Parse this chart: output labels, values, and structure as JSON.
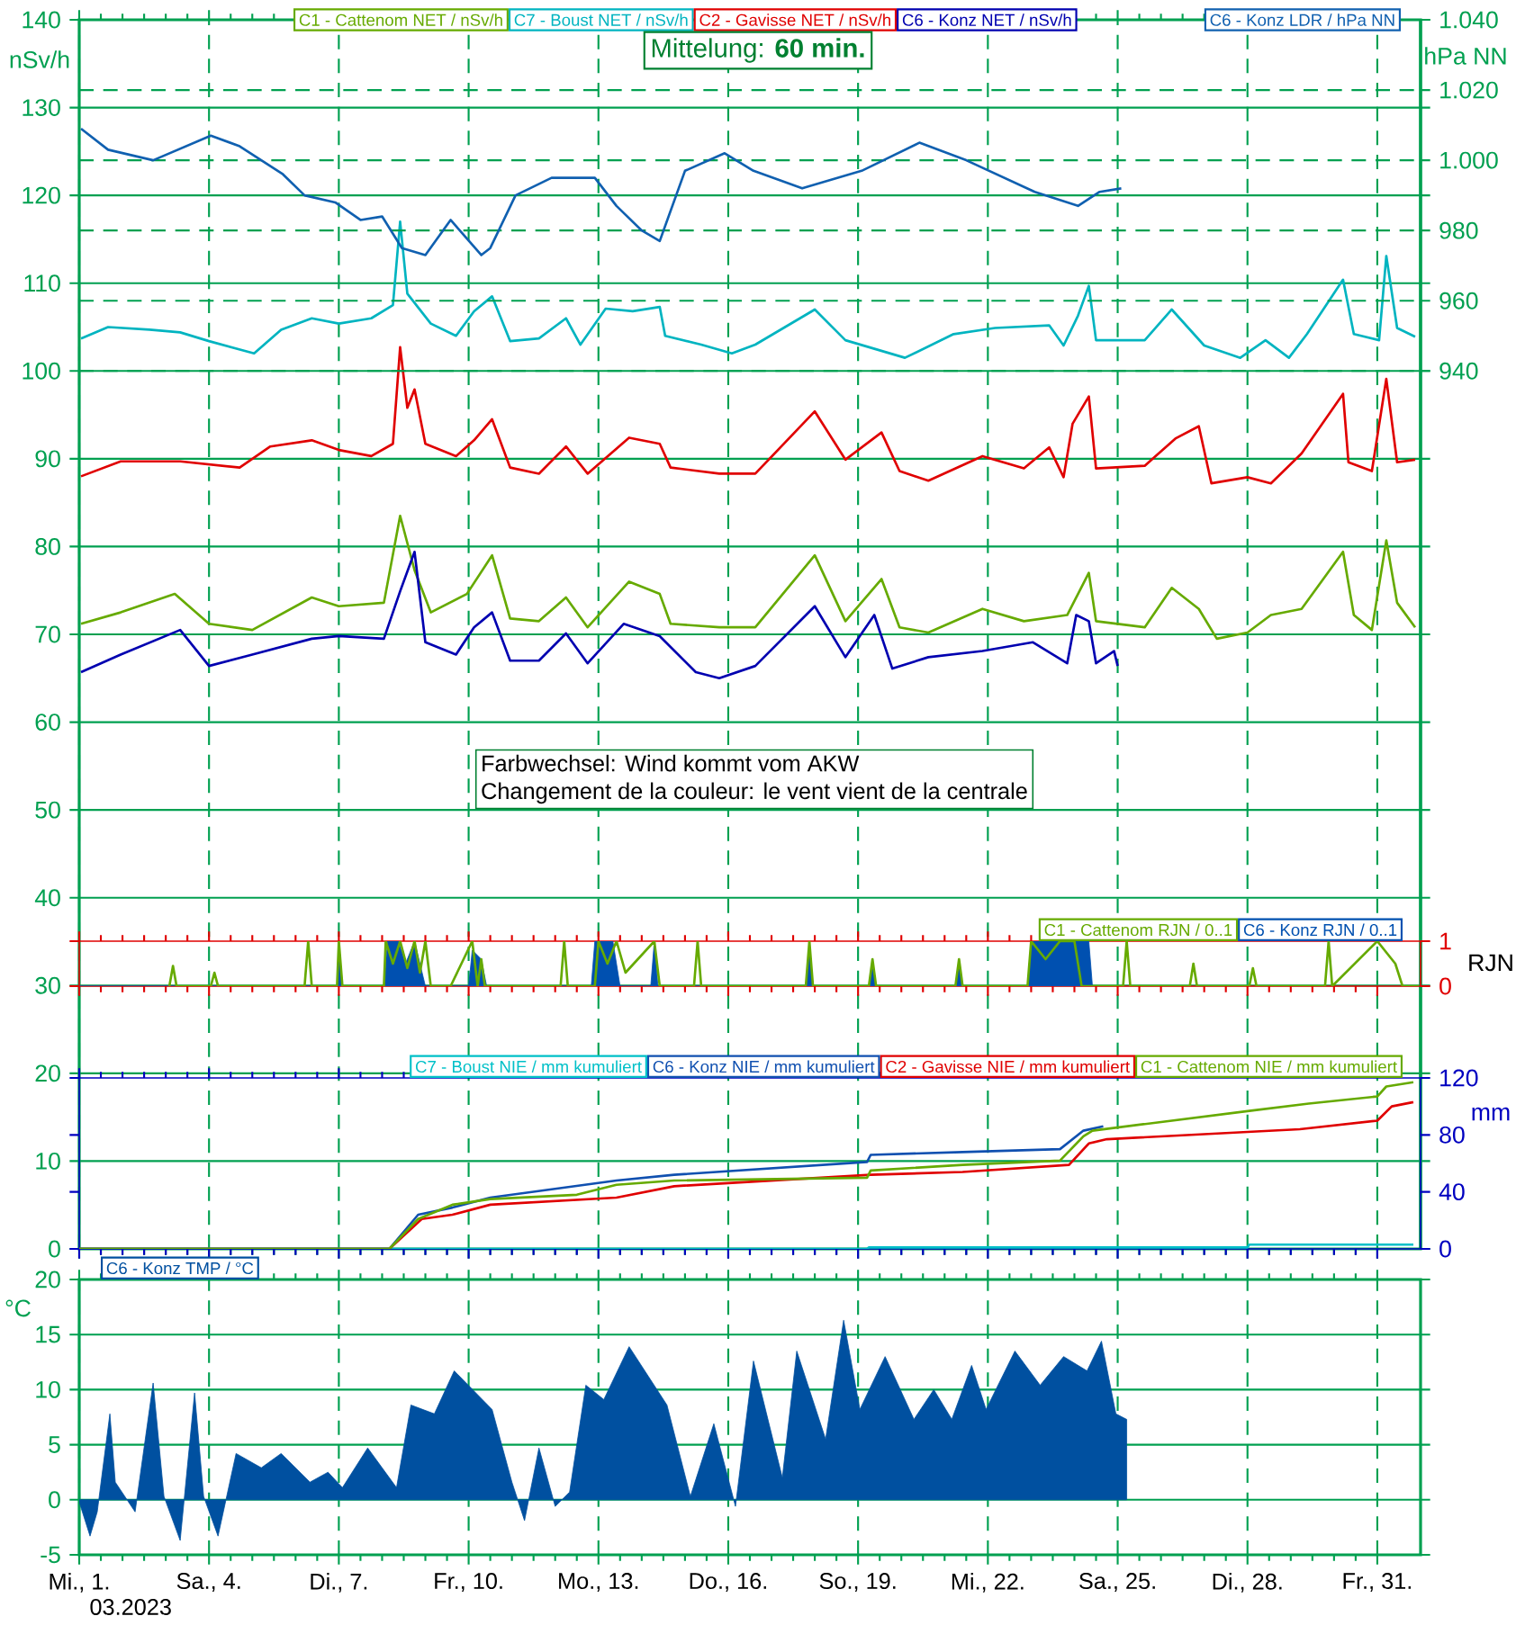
{
  "chart_data": [
    {
      "type": "line",
      "xlim": [
        "2023-03-01",
        "2023-04-01"
      ],
      "xticks": [
        {
          "value": "2023-03-01",
          "label": null
        },
        {
          "value": "2023-03-04",
          "label": null
        },
        {
          "value": "2023-03-07",
          "label": null
        },
        {
          "value": "2023-03-10",
          "label": null
        },
        {
          "value": "2023-03-13",
          "label": null
        },
        {
          "value": "2023-03-16",
          "label": null
        },
        {
          "value": "2023-03-19",
          "label": null
        },
        {
          "value": "2023-03-22",
          "label": null
        },
        {
          "value": "2023-03-25",
          "label": null
        },
        {
          "value": "2023-03-28",
          "label": null
        },
        {
          "value": "2023-03-31",
          "label": null
        }
      ],
      "ylim": [
        0,
        140
      ],
      "yticks": [
        0,
        10,
        20,
        30,
        40,
        50,
        60,
        70,
        80,
        90,
        100,
        110,
        120,
        130,
        140
      ],
      "ylabel": "nSv/h",
      "y2label": "hPa NN",
      "y2lim": [
        690,
        1040
      ],
      "y2ticks": [
        940,
        960,
        980,
        {
          "value": 1000,
          "label": "1.000"
        },
        {
          "value": 1020,
          "label": "1.020"
        },
        {
          "value": 1040,
          "label": "1.040"
        }
      ],
      "grid": true,
      "legend": "top",
      "tick_labels": "y",
      "annotations": [
        "Mittelung: **60 min.**",
        "Farbwechsel: Wind kommt vom AKW",
        "Changement de la couleur: le vent vient de la centrale"
      ],
      "series": [
        {
          "name": "C1 - Cattenom NET / nSv/h",
          "color": "#66aa00",
          "x": [
            "2023-03-01T01:00",
            "2023-03-01T23:00",
            "2023-03-03T05:00",
            "2023-03-04T00:00",
            "2023-03-05T00:00",
            "2023-03-06T09:00",
            "2023-03-07T00:00",
            "2023-03-08T01:00",
            "2023-03-08T10:00",
            "2023-03-08T18:00",
            "2023-03-09T03:00",
            "2023-03-09T23:00",
            "2023-03-10T13:00",
            "2023-03-10T23:00",
            "2023-03-11T15:00",
            "2023-03-12T06:00",
            "2023-03-12T18:00",
            "2023-03-13T17:00",
            "2023-03-14T10:00",
            "2023-03-14T16:00",
            "2023-03-15T19:00",
            "2023-03-16T15:00",
            "2023-03-18T00:00",
            "2023-03-18T17:00",
            "2023-03-19T13:00",
            "2023-03-19T23:00",
            "2023-03-20T15:00",
            "2023-03-21T21:00",
            "2023-03-22T20:00",
            "2023-03-23T20:00",
            "2023-03-24T08:00",
            "2023-03-24T12:00",
            "2023-03-25T15:00",
            "2023-03-26T06:00",
            "2023-03-26T21:00",
            "2023-03-27T07:00",
            "2023-03-28T00:00",
            "2023-03-28T13:00",
            "2023-03-29T06:00",
            "2023-03-30T05:00",
            "2023-03-30T11:00",
            "2023-03-30T21:00",
            "2023-03-31T05:00",
            "2023-03-31T11:00",
            "2023-03-31T21:00"
          ],
          "values": [
            71.2,
            72.5,
            74.6,
            71.2,
            70.5,
            74.2,
            73.2,
            73.6,
            83.5,
            77.3,
            72.5,
            74.6,
            79,
            71.8,
            71.5,
            74.2,
            70.8,
            76,
            74.6,
            71.2,
            70.8,
            70.8,
            79,
            71.5,
            76.3,
            70.8,
            70.2,
            72.9,
            71.5,
            72.2,
            77,
            71.5,
            70.8,
            75.3,
            72.9,
            69.5,
            70.2,
            72.2,
            72.9,
            79.4,
            72.2,
            70.5,
            80.7,
            73.6,
            70.8
          ]
        },
        {
          "name": "C7 - Boust NET / nSv/h",
          "color": "#00b4c0",
          "x": [
            "2023-03-01T01:00",
            "2023-03-01T16:00",
            "2023-03-02T15:00",
            "2023-03-03T08:00",
            "2023-03-04T00:00",
            "2023-03-05T01:00",
            "2023-03-05T16:00",
            "2023-03-06T09:00",
            "2023-03-07T00:00",
            "2023-03-07T18:00",
            "2023-03-08T06:00",
            "2023-03-08T10:00",
            "2023-03-08T14:00",
            "2023-03-09T03:00",
            "2023-03-09T17:00",
            "2023-03-10T03:00",
            "2023-03-10T13:00",
            "2023-03-10T23:00",
            "2023-03-11T15:00",
            "2023-03-12T06:00",
            "2023-03-12T14:00",
            "2023-03-13T04:00",
            "2023-03-13T19:00",
            "2023-03-14T10:00",
            "2023-03-14T13:00",
            "2023-03-15T09:00",
            "2023-03-16T02:00",
            "2023-03-16T15:00",
            "2023-03-18T00:00",
            "2023-03-18T17:00",
            "2023-03-20T02:00",
            "2023-03-21T05:00",
            "2023-03-22T04:00",
            "2023-03-23T10:00",
            "2023-03-23T18:00",
            "2023-03-24T02:00",
            "2023-03-24T08:00",
            "2023-03-24T12:00",
            "2023-03-24T22:00",
            "2023-03-25T15:00",
            "2023-03-26T06:00",
            "2023-03-27T00:00",
            "2023-03-27T20:00",
            "2023-03-28T10:00",
            "2023-03-28T23:00",
            "2023-03-29T09:00",
            "2023-03-30T05:00",
            "2023-03-30T11:00",
            "2023-03-31T01:00",
            "2023-03-31T05:00",
            "2023-03-31T11:00",
            "2023-03-31T21:00"
          ],
          "values": [
            103.7,
            105,
            104.7,
            104.4,
            103.4,
            102,
            104.7,
            106,
            105.4,
            106,
            107.5,
            117,
            108.8,
            105.4,
            104,
            106.8,
            108.5,
            103.4,
            103.7,
            106,
            103,
            107.1,
            106.8,
            107.3,
            104,
            103,
            102,
            103,
            107,
            103.5,
            101.5,
            104.2,
            104.9,
            105.2,
            102.9,
            106.3,
            109.7,
            103.5,
            103.5,
            103.5,
            107,
            102.9,
            101.5,
            103.5,
            101.5,
            104.2,
            110.4,
            104.2,
            103.5,
            113.1,
            104.9,
            103.9
          ]
        },
        {
          "name": "C2 - Gavisse NET / nSv/h",
          "color": "#e00000",
          "x": [
            "2023-03-01T01:00",
            "2023-03-01T23:00",
            "2023-03-03T08:00",
            "2023-03-04T17:00",
            "2023-03-05T10:00",
            "2023-03-06T09:00",
            "2023-03-07T00:00",
            "2023-03-07T18:00",
            "2023-03-08T06:00",
            "2023-03-08T10:00",
            "2023-03-08T14:00",
            "2023-03-08T18:00",
            "2023-03-09T00:00",
            "2023-03-09T17:00",
            "2023-03-10T03:00",
            "2023-03-10T13:00",
            "2023-03-10T23:00",
            "2023-03-11T15:00",
            "2023-03-12T06:00",
            "2023-03-12T18:00",
            "2023-03-13T17:00",
            "2023-03-14T10:00",
            "2023-03-14T16:00",
            "2023-03-15T19:00",
            "2023-03-16T15:00",
            "2023-03-18T00:00",
            "2023-03-18T17:00",
            "2023-03-19T13:00",
            "2023-03-19T23:00",
            "2023-03-20T15:00",
            "2023-03-21T21:00",
            "2023-03-22T20:00",
            "2023-03-23T10:00",
            "2023-03-23T18:00",
            "2023-03-23T23:00",
            "2023-03-24T08:00",
            "2023-03-24T12:00",
            "2023-03-25T15:00",
            "2023-03-26T08:00",
            "2023-03-26T21:00",
            "2023-03-27T04:00",
            "2023-03-28T00:00",
            "2023-03-28T13:00",
            "2023-03-29T06:00",
            "2023-03-30T05:00",
            "2023-03-30T08:00",
            "2023-03-30T21:00",
            "2023-03-31T05:00",
            "2023-03-31T11:00",
            "2023-03-31T21:00"
          ],
          "values": [
            88,
            89.7,
            89.7,
            89,
            91.4,
            92.1,
            91,
            90.3,
            91.7,
            102.7,
            95.8,
            97.9,
            91.7,
            90.3,
            92.1,
            94.5,
            89,
            88.3,
            91.4,
            88.3,
            92.4,
            91.7,
            89,
            88.3,
            88.3,
            95.4,
            89.9,
            93,
            88.6,
            87.5,
            90.3,
            88.9,
            91.3,
            87.9,
            94,
            97.1,
            88.9,
            89.2,
            92.3,
            93.7,
            87.2,
            87.9,
            87.2,
            90.6,
            97.4,
            89.6,
            88.6,
            99.1,
            89.6,
            89.9
          ]
        },
        {
          "name": "C6 - Konz NET / nSv/h",
          "color": "#0000b0",
          "x": [
            "2023-03-01T01:00",
            "2023-03-01T23:00",
            "2023-03-03T08:00",
            "2023-03-04T00:00",
            "2023-03-05T00:00",
            "2023-03-06T09:00",
            "2023-03-07T00:00",
            "2023-03-08T01:00",
            "2023-03-08T10:00",
            "2023-03-08T18:00",
            "2023-03-09T00:00",
            "2023-03-09T17:00",
            "2023-03-10T03:00",
            "2023-03-10T13:00",
            "2023-03-10T23:00",
            "2023-03-11T15:00",
            "2023-03-12T06:00",
            "2023-03-12T18:00",
            "2023-03-13T14:00",
            "2023-03-14T10:00",
            "2023-03-15T06:00",
            "2023-03-15T19:00",
            "2023-03-16T15:00",
            "2023-03-18T00:00",
            "2023-03-18T17:00",
            "2023-03-19T09:00",
            "2023-03-19T19:00",
            "2023-03-20T15:00",
            "2023-03-21T21:00",
            "2023-03-23T01:00",
            "2023-03-23T20:00",
            "2023-03-24T01:00",
            "2023-03-24T08:00",
            "2023-03-24T12:00",
            "2023-03-24T22:00",
            "2023-03-25T00:00"
          ],
          "values": [
            65.7,
            67.7,
            70.5,
            66.4,
            67.7,
            69.5,
            69.8,
            69.5,
            74.9,
            79.4,
            69.1,
            67.7,
            70.8,
            72.5,
            67,
            67,
            70.1,
            66.7,
            71.2,
            69.8,
            65.7,
            65,
            66.4,
            73.2,
            67.4,
            72.2,
            66.1,
            67.4,
            68.1,
            69.1,
            66.7,
            72.2,
            71.5,
            66.7,
            68.1,
            66.4
          ]
        },
        {
          "name": "C6 - Konz LDR / hPa NN",
          "color": "#1060b0",
          "axis": "y2",
          "x": [
            "2023-03-01T01:00",
            "2023-03-01T16:00",
            "2023-03-02T17:00",
            "2023-03-04T01:00",
            "2023-03-04T17:00",
            "2023-03-05T17:00",
            "2023-03-06T05:00",
            "2023-03-06T22:00",
            "2023-03-07T12:00",
            "2023-03-08T00:00",
            "2023-03-08T11:00",
            "2023-03-09T00:00",
            "2023-03-09T14:00",
            "2023-03-10T07:00",
            "2023-03-10T12:00",
            "2023-03-11T02:00",
            "2023-03-11T22:00",
            "2023-03-12T22:00",
            "2023-03-13T10:00",
            "2023-03-14T00:00",
            "2023-03-14T10:00",
            "2023-03-15T00:00",
            "2023-03-15T22:00",
            "2023-03-16T14:00",
            "2023-03-17T17:00",
            "2023-03-19T02:00",
            "2023-03-20T10:00",
            "2023-03-21T12:00",
            "2023-03-23T02:00",
            "2023-03-24T02:00",
            "2023-03-24T14:00",
            "2023-03-25T02:00"
          ],
          "values": [
            1009,
            1003,
            1000,
            1007,
            1004,
            996,
            990,
            988,
            983,
            984,
            975,
            973,
            983,
            973,
            975,
            990,
            995,
            995,
            987,
            980,
            977,
            997,
            1002,
            997,
            992,
            997,
            1005,
            1000,
            991,
            987,
            991,
            992
          ]
        }
      ]
    },
    {
      "type": "area",
      "xlim": [
        "2023-03-01",
        "2023-04-01"
      ],
      "xticks": [
        {
          "value": "2023-03-01",
          "label": null
        },
        {
          "value": "2023-03-04",
          "label": null
        },
        {
          "value": "2023-03-07",
          "label": null
        },
        {
          "value": "2023-03-10",
          "label": null
        },
        {
          "value": "2023-03-13",
          "label": null
        },
        {
          "value": "2023-03-16",
          "label": null
        },
        {
          "value": "2023-03-19",
          "label": null
        },
        {
          "value": "2023-03-22",
          "label": null
        },
        {
          "value": "2023-03-25",
          "label": null
        },
        {
          "value": "2023-03-28",
          "label": null
        },
        {
          "value": "2023-03-31",
          "label": null
        }
      ],
      "ylim": [
        0,
        1
      ],
      "yticks": [
        0,
        1
      ],
      "ylabel": "RJN",
      "legend": "top right",
      "tick_labels": "y",
      "series": [
        {
          "name": "C1 - Cattenom RJN / 0..1",
          "color": "#66aa00",
          "type": "line",
          "x": [
            "2023-03-03T02:00",
            "2023-03-03T04:00",
            "2023-03-03T06:00",
            "2023-03-04T01:00",
            "2023-03-04T03:00",
            "2023-03-04T05:00",
            "2023-03-06T05:00",
            "2023-03-06T07:00",
            "2023-03-06T09:00",
            "2023-03-06T23:00",
            "2023-03-07T00:00",
            "2023-03-07T02:00",
            "2023-03-08T01:00",
            "2023-03-08T02:00",
            "2023-03-08T06:00",
            "2023-03-08T10:00",
            "2023-03-08T14:00",
            "2023-03-08T18:00",
            "2023-03-08T21:00",
            "2023-03-09T00:00",
            "2023-03-09T03:00",
            "2023-03-09T14:00",
            "2023-03-10T02:00",
            "2023-03-10T05:00",
            "2023-03-10T07:00",
            "2023-03-10T09:00",
            "2023-03-12T03:00",
            "2023-03-12T05:00",
            "2023-03-12T07:00",
            "2023-03-12T22:00",
            "2023-03-13T00:00",
            "2023-03-13T05:00",
            "2023-03-13T10:00",
            "2023-03-13T15:00",
            "2023-03-14T07:00",
            "2023-03-14T10:00",
            "2023-03-15T05:00",
            "2023-03-15T07:00",
            "2023-03-15T09:00",
            "2023-03-17T19:00",
            "2023-03-17T21:00",
            "2023-03-17T23:00",
            "2023-03-19T06:00",
            "2023-03-19T08:00",
            "2023-03-19T10:00",
            "2023-03-21T06:00",
            "2023-03-21T08:00",
            "2023-03-21T10:00",
            "2023-03-22T22:00",
            "2023-03-23T00:00",
            "2023-03-23T08:00",
            "2023-03-23T16:00",
            "2023-03-24T00:00",
            "2023-03-24T04:00",
            "2023-03-25T03:00",
            "2023-03-25T05:00",
            "2023-03-25T07:00",
            "2023-03-26T16:00",
            "2023-03-26T18:00",
            "2023-03-26T20:00",
            "2023-03-28T01:00",
            "2023-03-28T03:00",
            "2023-03-28T05:00",
            "2023-03-29T19:00",
            "2023-03-29T21:00",
            "2023-03-29T23:00",
            "2023-03-31T00:00",
            "2023-03-31T10:00",
            "2023-03-31T14:00",
            "2023-03-31T23:00"
          ],
          "values": [
            0,
            0.45,
            0,
            0,
            0.3,
            0,
            0,
            1,
            0,
            0,
            1,
            0,
            0,
            1,
            0.5,
            1,
            0.4,
            1,
            0.3,
            1,
            0,
            0,
            1,
            0,
            0.6,
            0,
            0,
            1,
            0,
            0,
            1,
            0.5,
            1,
            0.3,
            1,
            0,
            0,
            1,
            0,
            0,
            1,
            0,
            0,
            0.6,
            0,
            0,
            0.6,
            0,
            0,
            1,
            0.6,
            1,
            1,
            0,
            0,
            1,
            0,
            0,
            0.5,
            0,
            0,
            0.4,
            0,
            0,
            1,
            0,
            1,
            0.5,
            0,
            0
          ]
        },
        {
          "name": "C6 - Konz RJN / 0..1",
          "color": "#0050b0",
          "x": [
            "2023-03-01T00:00",
            "2023-03-06T23:00",
            "2023-03-07T00:00",
            "2023-03-07T02:00",
            "2023-03-08T01:00",
            "2023-03-08T03:00",
            "2023-03-08T09:00",
            "2023-03-08T13:00",
            "2023-03-08T18:00",
            "2023-03-09T00:00",
            "2023-03-10T00:00",
            "2023-03-10T02:00",
            "2023-03-10T07:00",
            "2023-03-10T10:00",
            "2023-03-12T20:00",
            "2023-03-12T22:00",
            "2023-03-13T08:00",
            "2023-03-13T12:00",
            "2023-03-14T05:00",
            "2023-03-14T07:00",
            "2023-03-14T09:00",
            "2023-03-17T19:00",
            "2023-03-17T21:00",
            "2023-03-17T23:00",
            "2023-03-19T06:00",
            "2023-03-19T08:00",
            "2023-03-19T10:00",
            "2023-03-21T06:00",
            "2023-03-21T08:00",
            "2023-03-21T10:00",
            "2023-03-22T22:00",
            "2023-03-23T00:00",
            "2023-03-23T12:00",
            "2023-03-24T08:00",
            "2023-03-24T10:00",
            "2023-03-25T01:00"
          ],
          "values": [
            0,
            0,
            1,
            0,
            0,
            1,
            1,
            0.5,
            1,
            0,
            0,
            0.8,
            0.6,
            0,
            0,
            1,
            1,
            0,
            0,
            1,
            0,
            0,
            1,
            0,
            0,
            0.5,
            0,
            0,
            0.5,
            0,
            0,
            1,
            1,
            1,
            0,
            0
          ]
        }
      ]
    },
    {
      "type": "line",
      "xlim": [
        "2023-03-01",
        "2023-04-01"
      ],
      "xticks": [
        {
          "value": "2023-03-01",
          "label": null
        },
        {
          "value": "2023-03-04",
          "label": null
        },
        {
          "value": "2023-03-07",
          "label": null
        },
        {
          "value": "2023-03-10",
          "label": null
        },
        {
          "value": "2023-03-13",
          "label": null
        },
        {
          "value": "2023-03-16",
          "label": null
        },
        {
          "value": "2023-03-19",
          "label": null
        },
        {
          "value": "2023-03-22",
          "label": null
        },
        {
          "value": "2023-03-25",
          "label": null
        },
        {
          "value": "2023-03-28",
          "label": null
        },
        {
          "value": "2023-03-31",
          "label": null
        }
      ],
      "ylim": [
        0,
        120
      ],
      "yticks": [
        0,
        40,
        80,
        120
      ],
      "ylabel": "mm",
      "legend": "top right",
      "tick_labels": "y",
      "series": [
        {
          "name": "C7 - Boust NIE / mm kumuliert",
          "color": "#00c0c8",
          "x": [
            "2023-03-01T00:00",
            "2023-03-19T05:00",
            "2023-03-19T06:00",
            "2023-03-28T00:00",
            "2023-03-28T01:00",
            "2023-03-31T20:00"
          ],
          "values": [
            0,
            0,
            1,
            1,
            3,
            3
          ]
        },
        {
          "name": "C6 - Konz NIE / mm kumuliert",
          "color": "#1050b0",
          "x": [
            "2023-03-01T00:00",
            "2023-03-08T04:00",
            "2023-03-08T20:00",
            "2023-03-09T15:00",
            "2023-03-10T12:00",
            "2023-03-13T10:00",
            "2023-03-14T18:00",
            "2023-03-19T05:00",
            "2023-03-19T07:00",
            "2023-03-21T10:00",
            "2023-03-23T16:00",
            "2023-03-24T05:00",
            "2023-03-24T16:00"
          ],
          "values": [
            0,
            0,
            24,
            29,
            36,
            48,
            52,
            61,
            66,
            68,
            70,
            83,
            86
          ]
        },
        {
          "name": "C2 - Gavisse NIE / mm kumuliert",
          "color": "#e00000",
          "x": [
            "2023-03-01T00:00",
            "2023-03-08T04:00",
            "2023-03-08T22:00",
            "2023-03-09T15:00",
            "2023-03-10T12:00",
            "2023-03-13T10:00",
            "2023-03-14T18:00",
            "2023-03-19T07:00",
            "2023-03-21T10:00",
            "2023-03-23T21:00",
            "2023-03-24T08:00",
            "2023-03-24T18:00",
            "2023-03-29T05:00",
            "2023-03-31T00:00",
            "2023-03-31T08:00",
            "2023-03-31T20:00"
          ],
          "values": [
            0,
            0,
            21,
            24,
            31,
            36,
            44,
            52,
            54,
            59,
            74,
            77,
            84,
            90,
            100,
            103
          ]
        },
        {
          "name": "C1 - Cattenom NIE / mm kumuliert",
          "color": "#66aa00",
          "x": [
            "2023-03-01T00:00",
            "2023-03-08T04:00",
            "2023-03-08T20:00",
            "2023-03-09T15:00",
            "2023-03-10T12:00",
            "2023-03-12T12:00",
            "2023-03-13T10:00",
            "2023-03-14T18:00",
            "2023-03-19T05:00",
            "2023-03-19T07:00",
            "2023-03-21T10:00",
            "2023-03-23T16:00",
            "2023-03-24T05:00",
            "2023-03-24T10:00",
            "2023-03-28T02:00",
            "2023-03-29T10:00",
            "2023-03-31T00:00",
            "2023-03-31T05:00",
            "2023-03-31T20:00"
          ],
          "values": [
            0,
            0,
            21,
            31,
            35,
            38,
            45,
            48,
            50,
            55,
            59,
            62,
            79,
            83,
            97,
            102,
            107,
            114,
            117
          ]
        }
      ]
    },
    {
      "type": "area",
      "xlim": [
        "2023-03-01",
        "2023-04-01"
      ],
      "xticks": [
        {
          "value": "2023-03-01",
          "label": "Mi., 1."
        },
        {
          "value": "2023-03-04",
          "label": "Sa., 4."
        },
        {
          "value": "2023-03-07",
          "label": "Di., 7."
        },
        {
          "value": "2023-03-10",
          "label": "Fr., 10."
        },
        {
          "value": "2023-03-13",
          "label": "Mo., 13."
        },
        {
          "value": "2023-03-16",
          "label": "Do., 16."
        },
        {
          "value": "2023-03-19",
          "label": "So., 19."
        },
        {
          "value": "2023-03-22",
          "label": "Mi., 22."
        },
        {
          "value": "2023-03-25",
          "label": "Sa., 25."
        },
        {
          "value": "2023-03-28",
          "label": "Di., 28."
        },
        {
          "value": "2023-03-31",
          "label": "Fr., 31."
        }
      ],
      "ylim": [
        -5,
        20
      ],
      "yticks": [
        -5,
        0,
        5,
        10,
        15,
        20
      ],
      "ylabel": "°C",
      "grid": true,
      "legend": "top left",
      "annotations": [
        "03.2023"
      ],
      "series": [
        {
          "name": "C6 - Konz TMP / °C",
          "color": "#0050a0",
          "x": [
            "2023-03-01T00:00",
            "2023-03-01T06:00",
            "2023-03-01T10:00",
            "2023-03-01T17:00",
            "2023-03-01T20:00",
            "2023-03-02T07:00",
            "2023-03-02T17:00",
            "2023-03-02T23:00",
            "2023-03-03T08:00",
            "2023-03-03T16:00",
            "2023-03-03T21:00",
            "2023-03-04T05:00",
            "2023-03-04T15:00",
            "2023-03-05T05:00",
            "2023-03-05T16:00",
            "2023-03-06T08:00",
            "2023-03-06T18:00",
            "2023-03-07T02:00",
            "2023-03-07T16:00",
            "2023-03-08T08:00",
            "2023-03-08T16:00",
            "2023-03-09T05:00",
            "2023-03-09T16:00",
            "2023-03-10T13:00",
            "2023-03-11T00:00",
            "2023-03-11T07:00",
            "2023-03-11T15:00",
            "2023-03-12T00:00",
            "2023-03-12T08:00",
            "2023-03-12T17:00",
            "2023-03-13T03:00",
            "2023-03-13T17:00",
            "2023-03-14T14:00",
            "2023-03-15T03:00",
            "2023-03-15T16:00",
            "2023-03-16T04:00",
            "2023-03-16T14:00",
            "2023-03-17T06:00",
            "2023-03-17T14:00",
            "2023-03-18T06:00",
            "2023-03-18T16:00",
            "2023-03-19T01:00",
            "2023-03-19T15:00",
            "2023-03-20T07:00",
            "2023-03-20T18:00",
            "2023-03-21T04:00",
            "2023-03-21T15:00",
            "2023-03-21T23:00",
            "2023-03-22T15:00",
            "2023-03-23T05:00",
            "2023-03-23T18:00",
            "2023-03-24T07:00",
            "2023-03-24T15:00",
            "2023-03-24T23:00",
            "2023-03-25T05:00"
          ],
          "values": [
            -0.2,
            -3.3,
            -1.1,
            7.8,
            1.6,
            -1.1,
            10.6,
            0.3,
            -3.7,
            9.7,
            0.3,
            -3.3,
            4.2,
            2.9,
            4.2,
            1.6,
            2.5,
            1.1,
            4.7,
            1.1,
            8.6,
            7.8,
            11.7,
            8.2,
            1.6,
            -1.9,
            4.7,
            -0.6,
            0.7,
            10.4,
            9.1,
            13.9,
            8.6,
            0.3,
            6.9,
            -0.6,
            12.6,
            2.0,
            13.5,
            5.5,
            16.3,
            8.2,
            13.0,
            7.3,
            10.0,
            7.3,
            12.2,
            8.2,
            13.5,
            10.4,
            13.0,
            11.7,
            14.4,
            7.8,
            7.3
          ]
        }
      ]
    }
  ]
}
